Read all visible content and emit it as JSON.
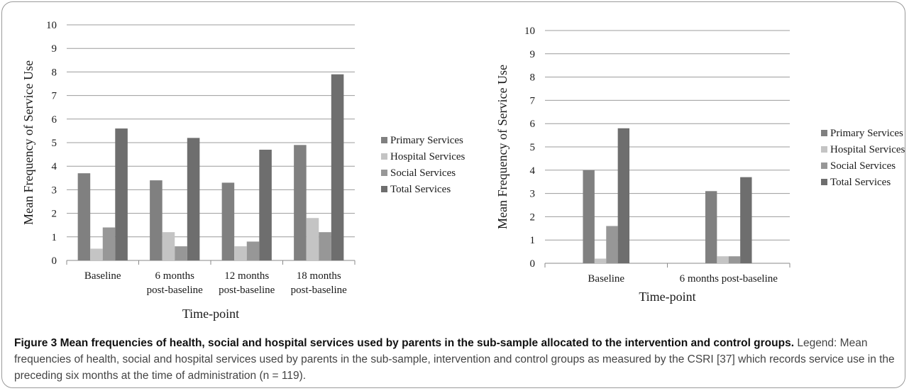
{
  "chart_data": [
    {
      "type": "bar",
      "categories": [
        [
          "Baseline"
        ],
        [
          "6 months",
          "post-baseline"
        ],
        [
          "12 months",
          "post-baseline"
        ],
        [
          "18 months",
          "post-baseline"
        ]
      ],
      "series": [
        {
          "name": "Primary Services",
          "color": "#808080",
          "values": [
            3.7,
            3.4,
            3.3,
            4.9
          ]
        },
        {
          "name": "Hospital Services",
          "color": "#c4c4c4",
          "values": [
            0.5,
            1.2,
            0.6,
            1.8
          ]
        },
        {
          "name": "Social Services",
          "color": "#979797",
          "values": [
            1.4,
            0.6,
            0.8,
            1.2
          ]
        },
        {
          "name": "Total Services",
          "color": "#6e6e6e",
          "values": [
            5.6,
            5.2,
            4.7,
            7.9
          ]
        }
      ],
      "xlabel": "Time-point",
      "ylabel": "Mean Frequency of Service Use",
      "ylim": [
        0,
        10
      ],
      "yticks": [
        "0",
        "1",
        "2",
        "3",
        "4",
        "5",
        "6",
        "7",
        "8",
        "9",
        "10"
      ],
      "grid": true,
      "legend_position": "right"
    },
    {
      "type": "bar",
      "categories": [
        [
          "Baseline"
        ],
        [
          "6 months post-baseline"
        ]
      ],
      "series": [
        {
          "name": "Primary Services",
          "color": "#808080",
          "values": [
            4.0,
            3.1
          ]
        },
        {
          "name": "Hospital Services",
          "color": "#c4c4c4",
          "values": [
            0.2,
            0.3
          ]
        },
        {
          "name": "Social Services",
          "color": "#979797",
          "values": [
            1.6,
            0.3
          ]
        },
        {
          "name": "Total Services",
          "color": "#6e6e6e",
          "values": [
            5.8,
            3.7
          ]
        }
      ],
      "xlabel": "Time-point",
      "ylabel": "Mean Frequency of Service Use",
      "ylim": [
        0,
        10
      ],
      "yticks": [
        "0",
        "1",
        "2",
        "3",
        "4",
        "5",
        "6",
        "7",
        "8",
        "9",
        "10"
      ],
      "grid": true,
      "legend_position": "right"
    }
  ],
  "caption": {
    "title": "Figure 3 Mean frequencies of health, social and hospital services used by parents in the sub-sample allocated to the intervention and control groups.",
    "legend": "Legend: Mean frequencies of health, social and hospital services used by parents in the sub-sample, intervention and control groups as measured by the CSRI [37] which records service use in the preceding six months at the time of administration (n = 119)."
  }
}
